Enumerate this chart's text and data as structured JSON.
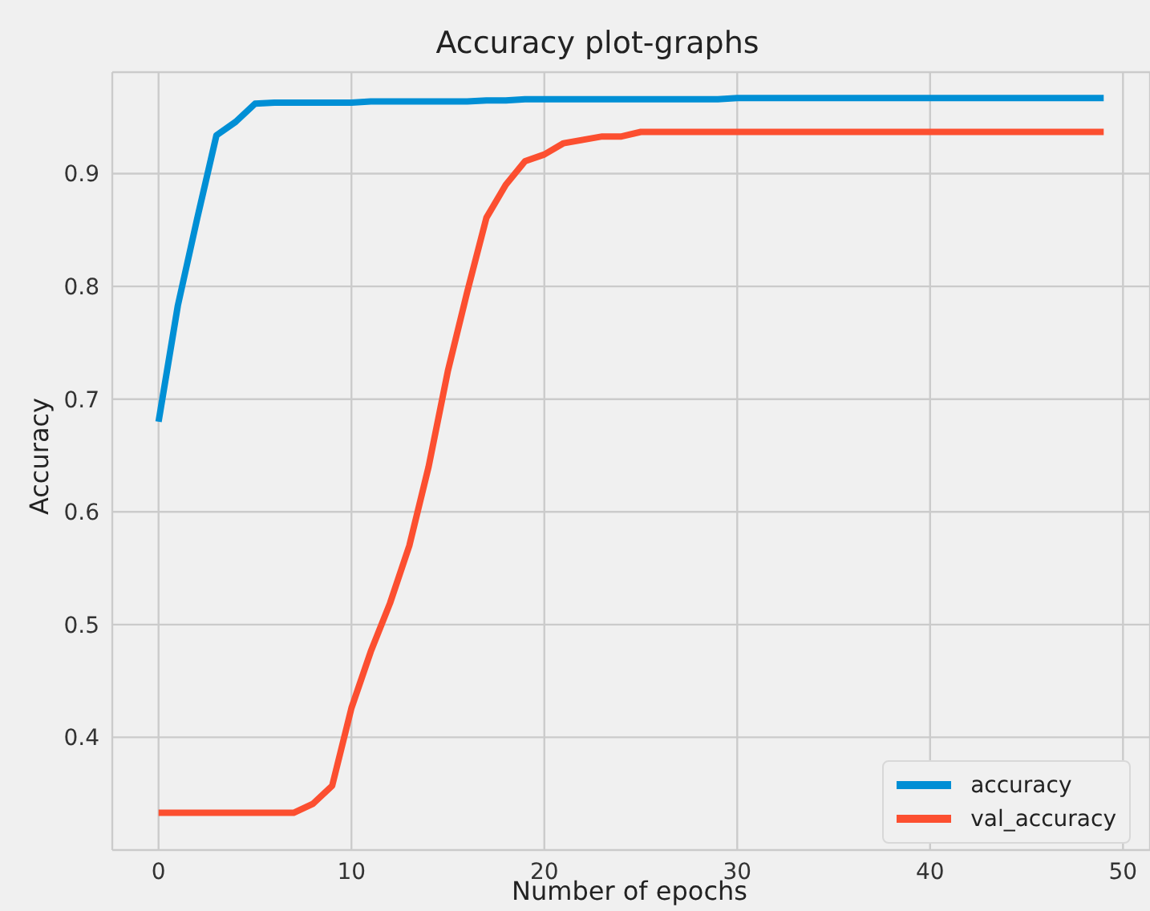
{
  "chart_data": {
    "type": "line",
    "title": "Accuracy plot-graphs",
    "xlabel": "Number of epochs",
    "ylabel": "Accuracy",
    "x": [
      0,
      1,
      2,
      3,
      4,
      5,
      6,
      7,
      8,
      9,
      10,
      11,
      12,
      13,
      14,
      15,
      16,
      17,
      18,
      19,
      20,
      21,
      22,
      23,
      24,
      25,
      26,
      27,
      28,
      29,
      30,
      31,
      32,
      33,
      34,
      35,
      36,
      37,
      38,
      39,
      40,
      41,
      42,
      43,
      44,
      45,
      46,
      47,
      48,
      49
    ],
    "series": [
      {
        "name": "accuracy",
        "color": "#008fd5",
        "values": [
          0.68,
          0.783,
          0.86,
          0.934,
          0.946,
          0.962,
          0.963,
          0.963,
          0.963,
          0.963,
          0.963,
          0.964,
          0.964,
          0.964,
          0.964,
          0.964,
          0.964,
          0.965,
          0.965,
          0.966,
          0.966,
          0.966,
          0.966,
          0.966,
          0.966,
          0.966,
          0.966,
          0.966,
          0.966,
          0.966,
          0.967,
          0.967,
          0.967,
          0.967,
          0.967,
          0.967,
          0.967,
          0.967,
          0.967,
          0.967,
          0.967,
          0.967,
          0.967,
          0.967,
          0.967,
          0.967,
          0.967,
          0.967,
          0.967,
          0.967
        ]
      },
      {
        "name": "val_accuracy",
        "color": "#fc4f30",
        "values": [
          0.333,
          0.333,
          0.333,
          0.333,
          0.333,
          0.333,
          0.333,
          0.333,
          0.341,
          0.357,
          0.426,
          0.476,
          0.519,
          0.57,
          0.64,
          0.725,
          0.795,
          0.861,
          0.89,
          0.911,
          0.917,
          0.927,
          0.93,
          0.933,
          0.933,
          0.937,
          0.937,
          0.937,
          0.937,
          0.937,
          0.937,
          0.937,
          0.937,
          0.937,
          0.937,
          0.937,
          0.937,
          0.937,
          0.937,
          0.937,
          0.937,
          0.937,
          0.937,
          0.937,
          0.937,
          0.937,
          0.937,
          0.937,
          0.937,
          0.937
        ]
      }
    ],
    "xlim": [
      -2.4,
      51.4
    ],
    "ylim": [
      0.3,
      0.99
    ],
    "xticks": [
      0,
      10,
      20,
      30,
      40,
      50
    ],
    "yticks": [
      0.4,
      0.5,
      0.6,
      0.7,
      0.8,
      0.9
    ],
    "grid": true,
    "legend": "bottom right",
    "marker": "none",
    "line_style": "solid"
  }
}
